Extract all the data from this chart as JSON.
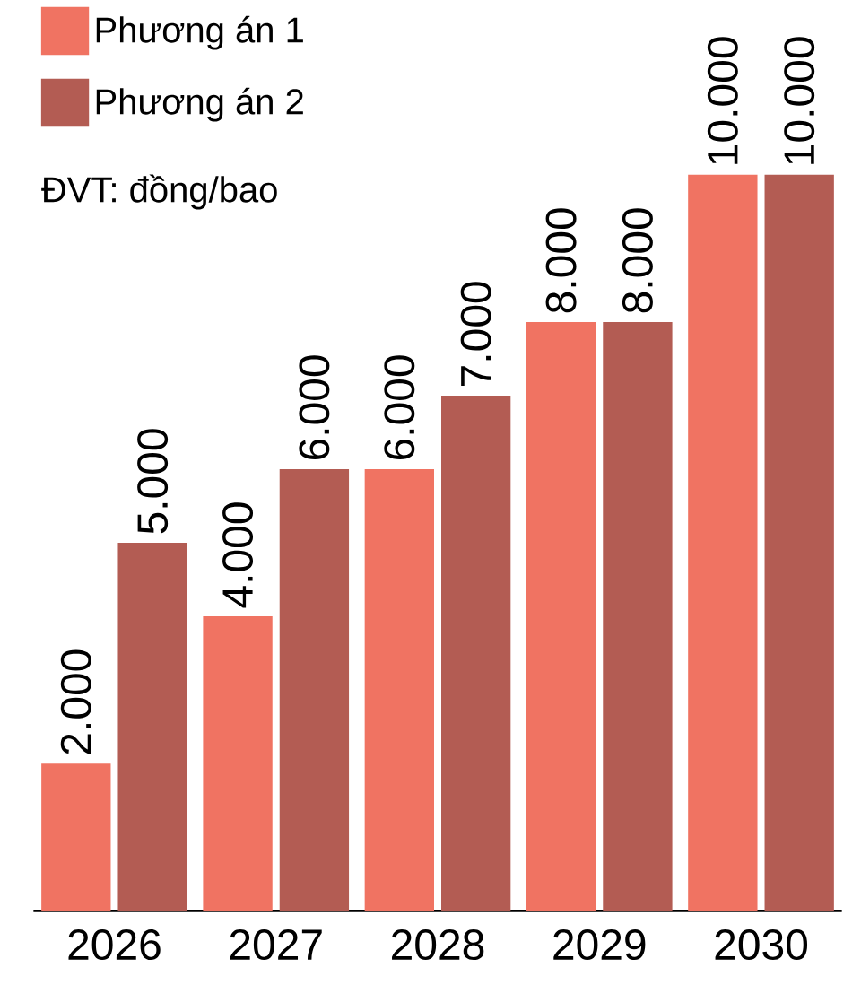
{
  "chart_data": {
    "type": "bar",
    "categories": [
      "2026",
      "2027",
      "2028",
      "2029",
      "2030"
    ],
    "series": [
      {
        "name": "Phương án 1",
        "color": "#f07362",
        "values": [
          2000,
          4000,
          6000,
          8000,
          10000
        ],
        "value_labels": [
          "2.000",
          "4.000",
          "6.000",
          "8.000",
          "10.000"
        ]
      },
      {
        "name": "Phương án 2",
        "color": "#b35c53",
        "values": [
          5000,
          6000,
          7000,
          8000,
          10000
        ],
        "value_labels": [
          "5.000",
          "6.000",
          "7.000",
          "8.000",
          "10.000"
        ]
      }
    ],
    "annotations": [
      "ĐVT: đồng/bao"
    ],
    "legend": "top left"
  }
}
